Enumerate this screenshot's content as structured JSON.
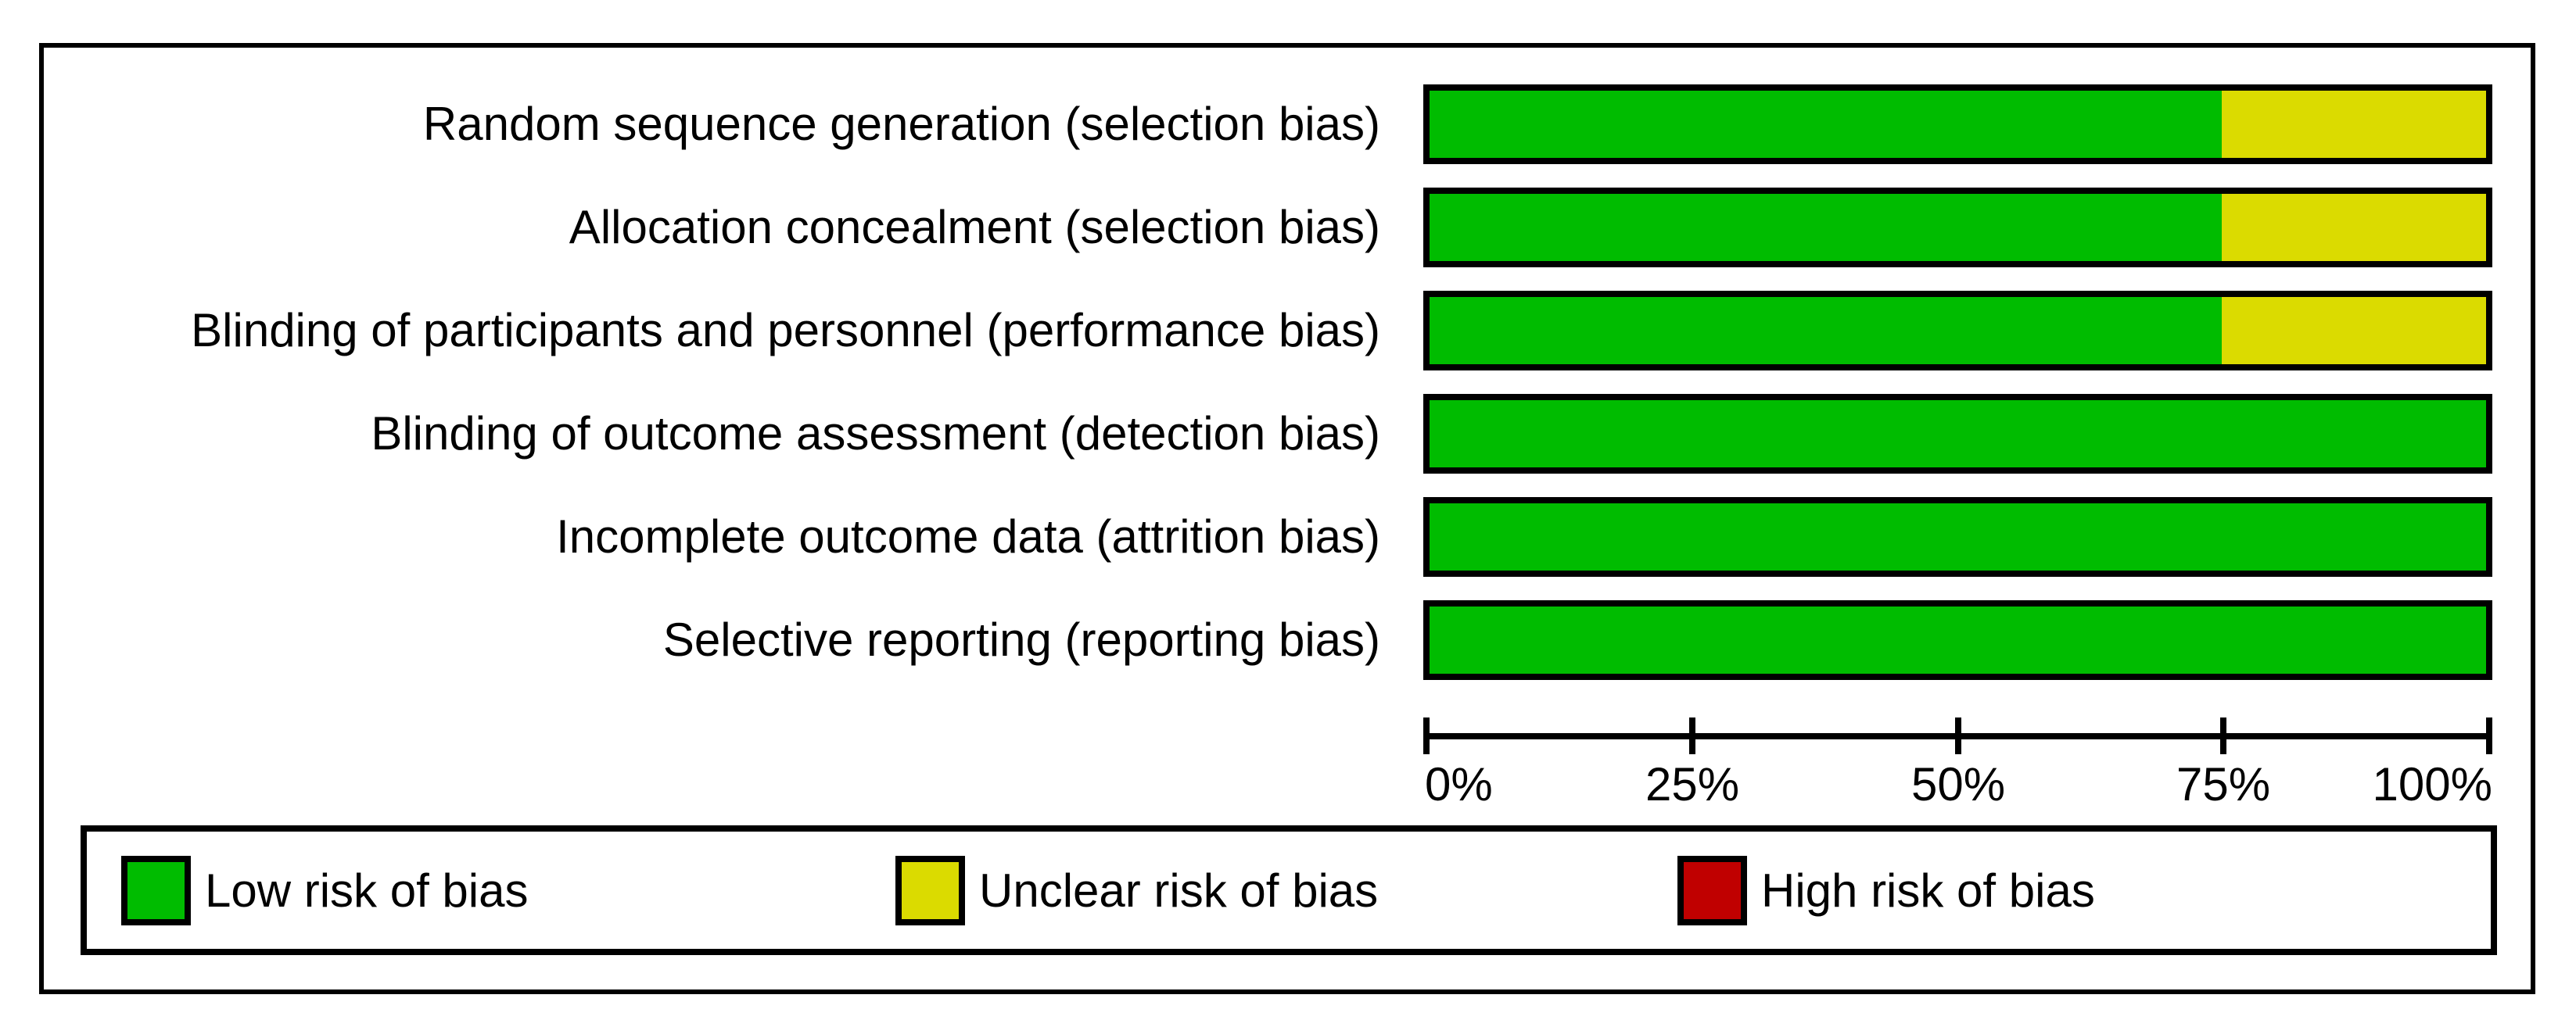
{
  "chart_data": {
    "type": "bar",
    "orientation": "horizontal",
    "stacked": true,
    "categories": [
      "Random sequence generation (selection bias)",
      "Allocation concealment (selection bias)",
      "Blinding of participants and personnel (performance bias)",
      "Blinding of outcome assessment (detection bias)",
      "Incomplete outcome data (attrition bias)",
      "Selective reporting (reporting bias)"
    ],
    "series": [
      {
        "key": "low",
        "name": "Low risk of bias",
        "color": "#00bc00",
        "values": [
          75,
          75,
          75,
          100,
          100,
          100
        ]
      },
      {
        "key": "unclear",
        "name": "Unclear risk of bias",
        "color": "#dbdb00",
        "values": [
          25,
          25,
          25,
          0,
          0,
          0
        ]
      },
      {
        "key": "high",
        "name": "High risk of bias",
        "color": "#c00000",
        "values": [
          0,
          0,
          0,
          0,
          0,
          0
        ]
      }
    ],
    "x_axis": {
      "range": [
        0,
        100
      ],
      "tick_labels": [
        "0%",
        "25%",
        "50%",
        "75%",
        "100%"
      ]
    },
    "legend_position": "bottom",
    "grid": false,
    "colors": {
      "bar_border": "#000000",
      "frame_border": "#000000",
      "background": "#ffffff"
    }
  }
}
